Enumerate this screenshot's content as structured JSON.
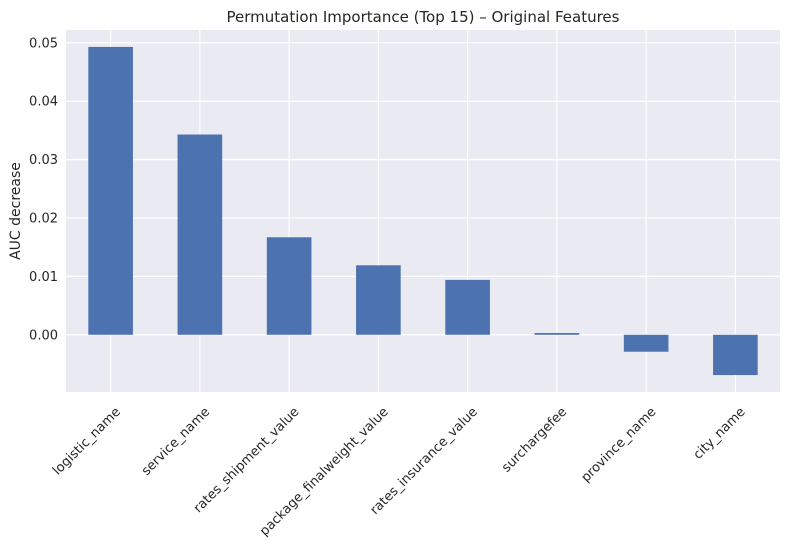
{
  "chart_data": {
    "type": "bar",
    "title": "Permutation Importance (Top 15) – Original Features",
    "xlabel": "",
    "ylabel": "AUC decrease",
    "categories": [
      "logistic_name",
      "service_name",
      "rates_shipment_value",
      "package_finalweight_value",
      "rates_insurance_value",
      "surchargefee",
      "province_name",
      "city_name"
    ],
    "values": [
      0.0493,
      0.0343,
      0.0167,
      0.0119,
      0.0094,
      0.0003,
      -0.0029,
      -0.0069
    ],
    "ylim": [
      -0.0098,
      0.0522
    ],
    "yticks": [
      0.0,
      0.01,
      0.02,
      0.03,
      0.04,
      0.05
    ],
    "ytick_labels": [
      "0.00",
      "0.01",
      "0.02",
      "0.03",
      "0.04",
      "0.05"
    ],
    "grid": true,
    "legend": "none",
    "bar_color": "#4c72b0",
    "background_color": "#eaeaf2",
    "grid_color": "#ffffff"
  }
}
